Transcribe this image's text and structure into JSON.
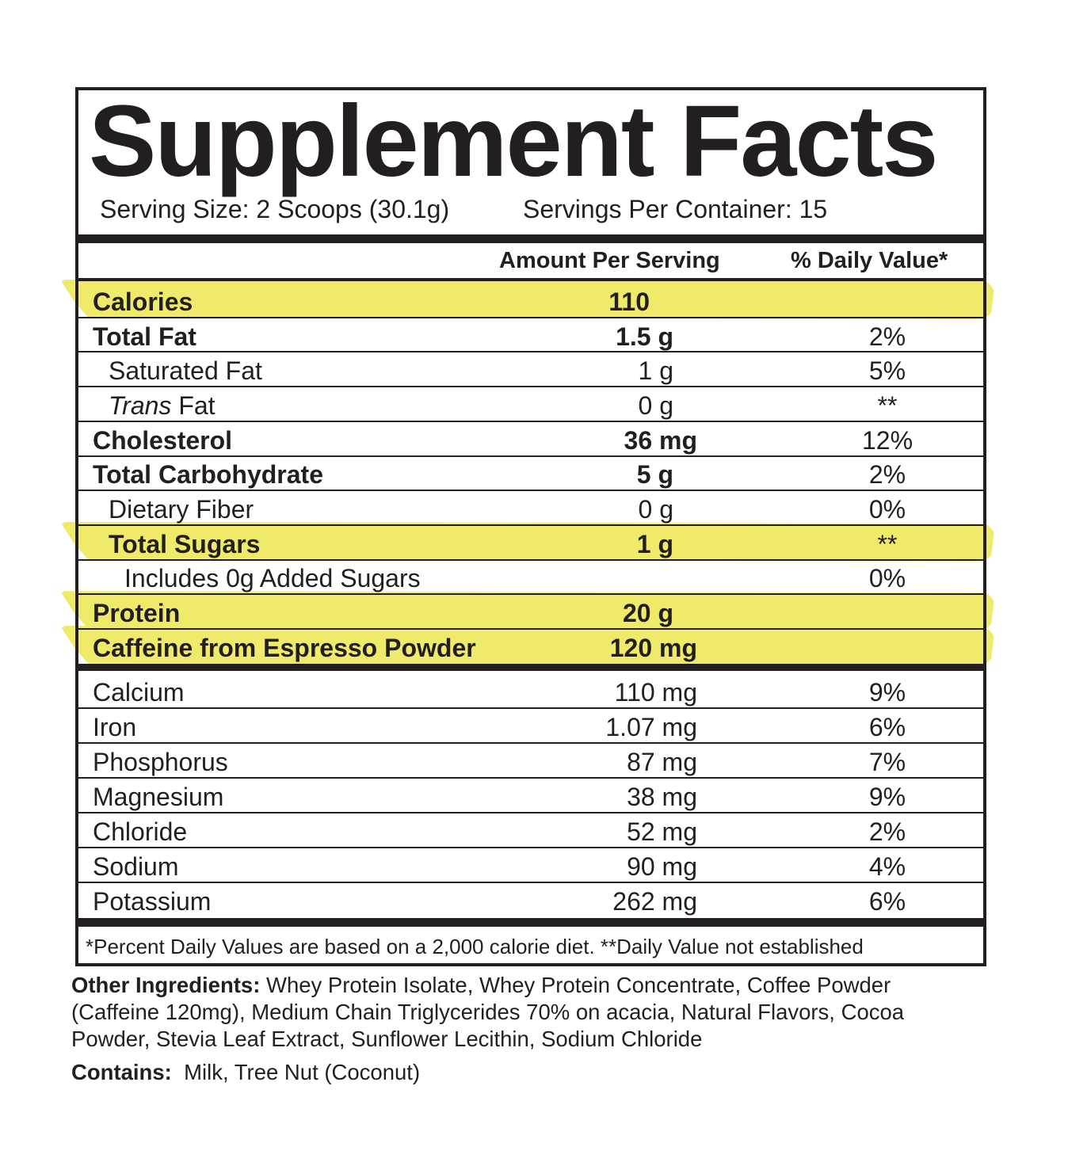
{
  "title": "Supplement Facts",
  "serving_size": "Serving Size: 2 Scoops (30.1g)",
  "servings_per_container": "Servings Per Container: 15",
  "header": {
    "amount": "Amount Per Serving",
    "daily_value": "% Daily Value*"
  },
  "sections": [
    {
      "rows": [
        {
          "name": "Calories",
          "amount": "110",
          "bold": true,
          "level": 0,
          "highlight": true
        },
        {
          "name": "Total Fat",
          "amount": "1.5 g",
          "dv": "2%",
          "bold": true,
          "level": 0
        },
        {
          "name": "Saturated Fat",
          "amount": "1 g",
          "dv": "5%",
          "level": 1
        },
        {
          "name_italic": "Trans",
          "name": "Fat",
          "amount": "0 g",
          "dv": "**",
          "level": 1
        },
        {
          "name": "Cholesterol",
          "amount": "36 mg",
          "dv": "12%",
          "bold": true,
          "level": 0
        },
        {
          "name": "Total Carbohydrate",
          "amount": "5 g",
          "dv": "2%",
          "bold": true,
          "level": 0
        },
        {
          "name": "Dietary Fiber",
          "amount": "0 g",
          "dv": "0%",
          "level": 1
        },
        {
          "name": "Total Sugars",
          "amount": "1 g",
          "dv": "**",
          "bold": true,
          "level": 1,
          "highlight": true
        },
        {
          "name": "Includes 0g Added Sugars",
          "dv": "0%",
          "level": 2
        },
        {
          "name": "Protein",
          "amount": "20 g",
          "bold": true,
          "level": 0,
          "highlight": true
        },
        {
          "name": "Caffeine from Espresso Powder",
          "amount": "120 mg",
          "bold": true,
          "level": 0,
          "highlight": true
        }
      ]
    },
    {
      "rows": [
        {
          "name": "Calcium",
          "amount": "110 mg",
          "dv": "9%",
          "level": 0
        },
        {
          "name": "Iron",
          "amount": "1.07 mg",
          "dv": "6%",
          "level": 0
        },
        {
          "name": "Phosphorus",
          "amount": "87 mg",
          "dv": "7%",
          "level": 0
        },
        {
          "name": "Magnesium",
          "amount": "38 mg",
          "dv": "9%",
          "level": 0
        },
        {
          "name": "Chloride",
          "amount": "52 mg",
          "dv": "2%",
          "level": 0
        },
        {
          "name": "Sodium",
          "amount": "90 mg",
          "dv": "4%",
          "level": 0
        },
        {
          "name": "Potassium",
          "amount": "262 mg",
          "dv": "6%",
          "level": 0
        }
      ]
    }
  ],
  "footnote": "*Percent Daily Values are based on a 2,000 calorie diet.  **Daily Value not established",
  "other_ingredients": {
    "label": "Other Ingredients:",
    "text": "Whey Protein Isolate, Whey Protein Concentrate, Coffee Powder (Caffeine 120mg), Medium Chain Triglycerides 70% on acacia, Natural Flavors, Cocoa Powder, Stevia Leaf Extract, Sunflower Lecithin, Sodium Chloride"
  },
  "contains": {
    "label": "Contains:",
    "text": "Milk, Tree Nut (Coconut)"
  }
}
